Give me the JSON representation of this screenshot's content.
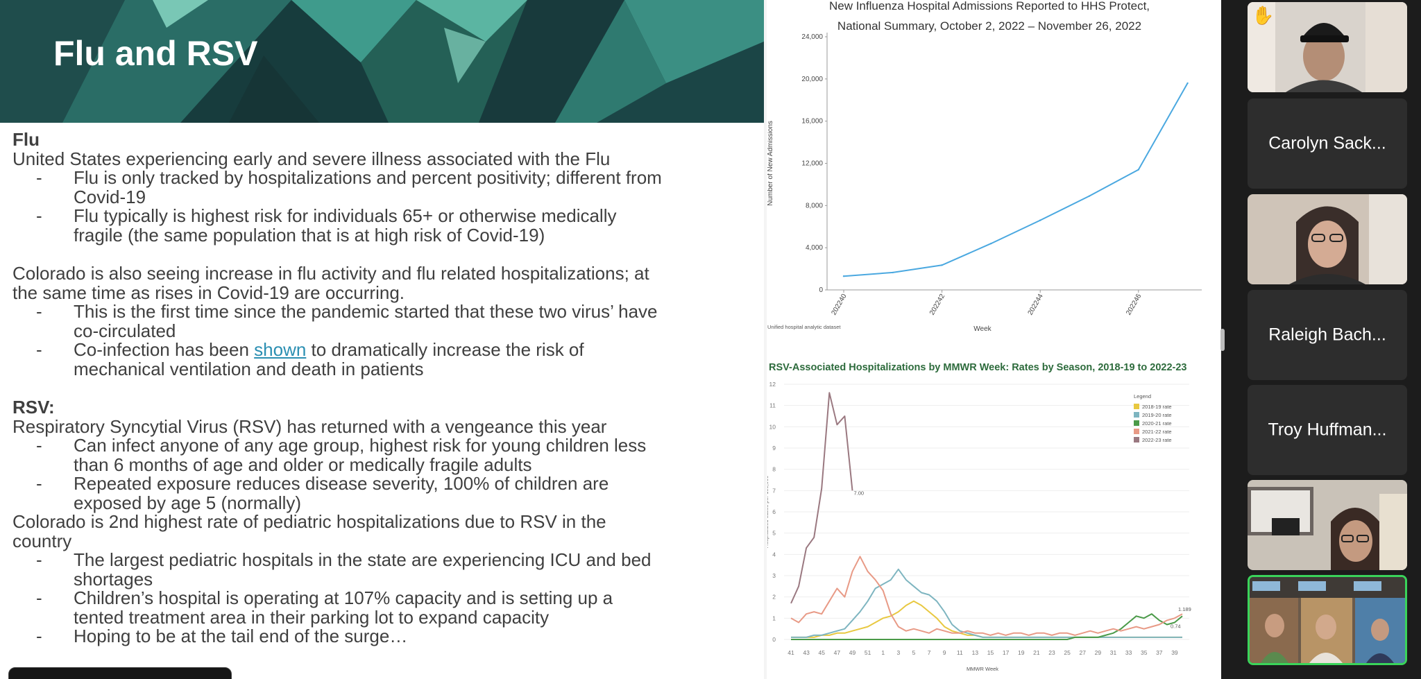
{
  "slide": {
    "title": "Flu and RSV",
    "flu_heading": "Flu",
    "flu_intro": "United States experiencing early and severe illness associated with the Flu",
    "flu_bullets": [
      [
        "Flu is only tracked by hospitalizations and percent positivity; different from",
        "Covid-19"
      ],
      [
        "Flu typically is highest risk for individuals 65+ or otherwise medically",
        "fragile (the same population that is at high risk of Covid-19)"
      ]
    ],
    "colorado_flu": [
      "Colorado is also seeing increase in flu activity and flu related hospitalizations; at",
      "the same time as rises in Covid-19 are occurring."
    ],
    "colorado_bullets": [
      [
        "This is the first time since the pandemic started that these two virus’ have",
        "co-circulated"
      ]
    ],
    "coinfection": {
      "before": "Co-infection has been ",
      "link": "shown",
      "after": " to dramatically increase the risk of",
      "line2": "mechanical ventilation and death in patients"
    },
    "rsv_heading": "RSV:",
    "rsv_intro": "Respiratory Syncytial Virus (RSV) has returned with a vengeance this year",
    "rsv_bullets": [
      [
        "Can infect anyone of any age group, highest risk for young children less",
        "than 6 months of age and older or medically fragile adults"
      ],
      [
        "Repeated exposure reduces disease severity, 100% of children are",
        "exposed by age 5 (normally)"
      ]
    ],
    "colorado_rsv": [
      "Colorado is 2nd highest rate of pediatric hospitalizations due to RSV in the",
      "country"
    ],
    "rsv_bullets2": [
      [
        "The largest pediatric hospitals in the state are experiencing ICU and bed",
        "shortages"
      ],
      [
        "Children’s hospital is operating at 107% capacity and is setting up a",
        "tented treatment area in their parking lot to expand capacity"
      ],
      [
        "Hoping to be at the tail end of the surge…"
      ]
    ],
    "dash": "-"
  },
  "chart_data": [
    {
      "type": "line",
      "title": "New Influenza Hospital Admissions Reported to HHS Protect,",
      "subtitle": "National Summary, October 2, 2022 – November 26, 2022",
      "xlabel": "Week",
      "ylabel": "Number of New Admissions",
      "source": "Unified hospital analytic dataset",
      "x_ticks": [
        "202240",
        "202242",
        "202244",
        "202246"
      ],
      "y_ticks": [
        "0",
        "4,000",
        "8,000",
        "12,000",
        "16,000",
        "20,000",
        "24,000"
      ],
      "ylim": [
        0,
        24000
      ],
      "x": [
        40,
        41,
        42,
        43,
        44,
        45,
        46,
        47
      ],
      "values": [
        1300,
        1650,
        2350,
        4400,
        6600,
        8900,
        11400,
        19600
      ],
      "color": "#4aa8e0",
      "grid": false
    },
    {
      "type": "line",
      "title": "RSV-Associated Hospitalizations by MMWR Week: Rates by Season, 2018-19 to 2022-23",
      "xlabel": "MMWR Week",
      "ylabel": "Hospitalized cases per 100,000",
      "y_ticks": [
        "0",
        "1",
        "2",
        "3",
        "4",
        "5",
        "6",
        "7",
        "8",
        "9",
        "10",
        "11",
        "12"
      ],
      "ylim": [
        0,
        12
      ],
      "x_ticks": [
        "41",
        "43",
        "45",
        "47",
        "49",
        "51",
        "1",
        "3",
        "5",
        "7",
        "9",
        "11",
        "13",
        "15",
        "17",
        "19",
        "21",
        "23",
        "25",
        "27",
        "29",
        "31",
        "33",
        "35",
        "37",
        "39"
      ],
      "legend_title": "Legend",
      "legend_position": "top-right",
      "annotations": [
        "7.00",
        "1.189",
        "0.74"
      ],
      "series": [
        {
          "name": "2018-19 rate",
          "color": "#e8c840",
          "values": [
            0.1,
            0.1,
            0.1,
            0.1,
            0.2,
            0.2,
            0.3,
            0.3,
            0.4,
            0.5,
            0.6,
            0.8,
            1.0,
            1.1,
            1.3,
            1.6,
            1.8,
            1.6,
            1.3,
            1.0,
            0.6,
            0.4,
            0.3,
            0.2,
            0.2,
            0.1,
            0.1,
            0.1,
            0.1,
            0.1,
            0.1,
            0.1,
            0.1,
            0.1,
            0.1,
            0.1,
            0.1,
            0.1,
            0.1,
            0.1,
            0.1,
            0.1,
            0.1,
            0.1,
            0.1,
            0.1,
            0.1,
            0.1,
            0.1,
            0.1,
            0.1,
            0.1
          ]
        },
        {
          "name": "2019-20 rate",
          "color": "#7eb5c0",
          "values": [
            0.1,
            0.1,
            0.1,
            0.2,
            0.2,
            0.3,
            0.4,
            0.5,
            0.9,
            1.3,
            1.8,
            2.4,
            2.6,
            2.8,
            3.3,
            2.8,
            2.5,
            2.2,
            2.1,
            1.8,
            1.3,
            0.7,
            0.4,
            0.3,
            0.2,
            0.1,
            0.1,
            0.1,
            0.1,
            0.1,
            0.1,
            0.1,
            0.1,
            0.1,
            0.1,
            0.1,
            0.1,
            0.1,
            0.1,
            0.1,
            0.1,
            0.1,
            0.1,
            0.1,
            0.1,
            0.1,
            0.1,
            0.1,
            0.1,
            0.1,
            0.1,
            0.1
          ]
        },
        {
          "name": "2020-21 rate",
          "color": "#4a9a48",
          "values": [
            0,
            0,
            0,
            0,
            0,
            0,
            0,
            0,
            0,
            0,
            0,
            0,
            0,
            0,
            0,
            0,
            0,
            0,
            0,
            0,
            0,
            0,
            0,
            0,
            0,
            0,
            0,
            0,
            0,
            0,
            0,
            0,
            0,
            0,
            0,
            0,
            0,
            0.1,
            0.1,
            0.1,
            0.1,
            0.2,
            0.3,
            0.5,
            0.8,
            1.1,
            1.0,
            1.2,
            0.9,
            0.7,
            0.8,
            1.1
          ]
        },
        {
          "name": "2021-22 rate",
          "color": "#e89a86",
          "values": [
            1.0,
            0.8,
            1.2,
            1.3,
            1.2,
            1.8,
            2.4,
            2.0,
            3.2,
            3.9,
            3.2,
            2.8,
            2.3,
            1.2,
            0.6,
            0.4,
            0.5,
            0.4,
            0.3,
            0.5,
            0.4,
            0.3,
            0.3,
            0.4,
            0.3,
            0.3,
            0.2,
            0.3,
            0.2,
            0.3,
            0.3,
            0.2,
            0.3,
            0.3,
            0.2,
            0.3,
            0.3,
            0.2,
            0.3,
            0.4,
            0.3,
            0.4,
            0.5,
            0.4,
            0.5,
            0.6,
            0.5,
            0.6,
            0.7,
            0.9,
            1.0,
            1.2
          ]
        },
        {
          "name": "2022-23 rate",
          "color": "#9a7880",
          "values": [
            1.7,
            2.5,
            4.3,
            4.8,
            7.1,
            11.6,
            10.1,
            10.5,
            7.0
          ]
        }
      ]
    }
  ],
  "gallery": {
    "participants": [
      "Carolyn Sack...",
      "Raleigh Bach...",
      "Troy Huffman..."
    ],
    "raised_hand": "✋"
  }
}
